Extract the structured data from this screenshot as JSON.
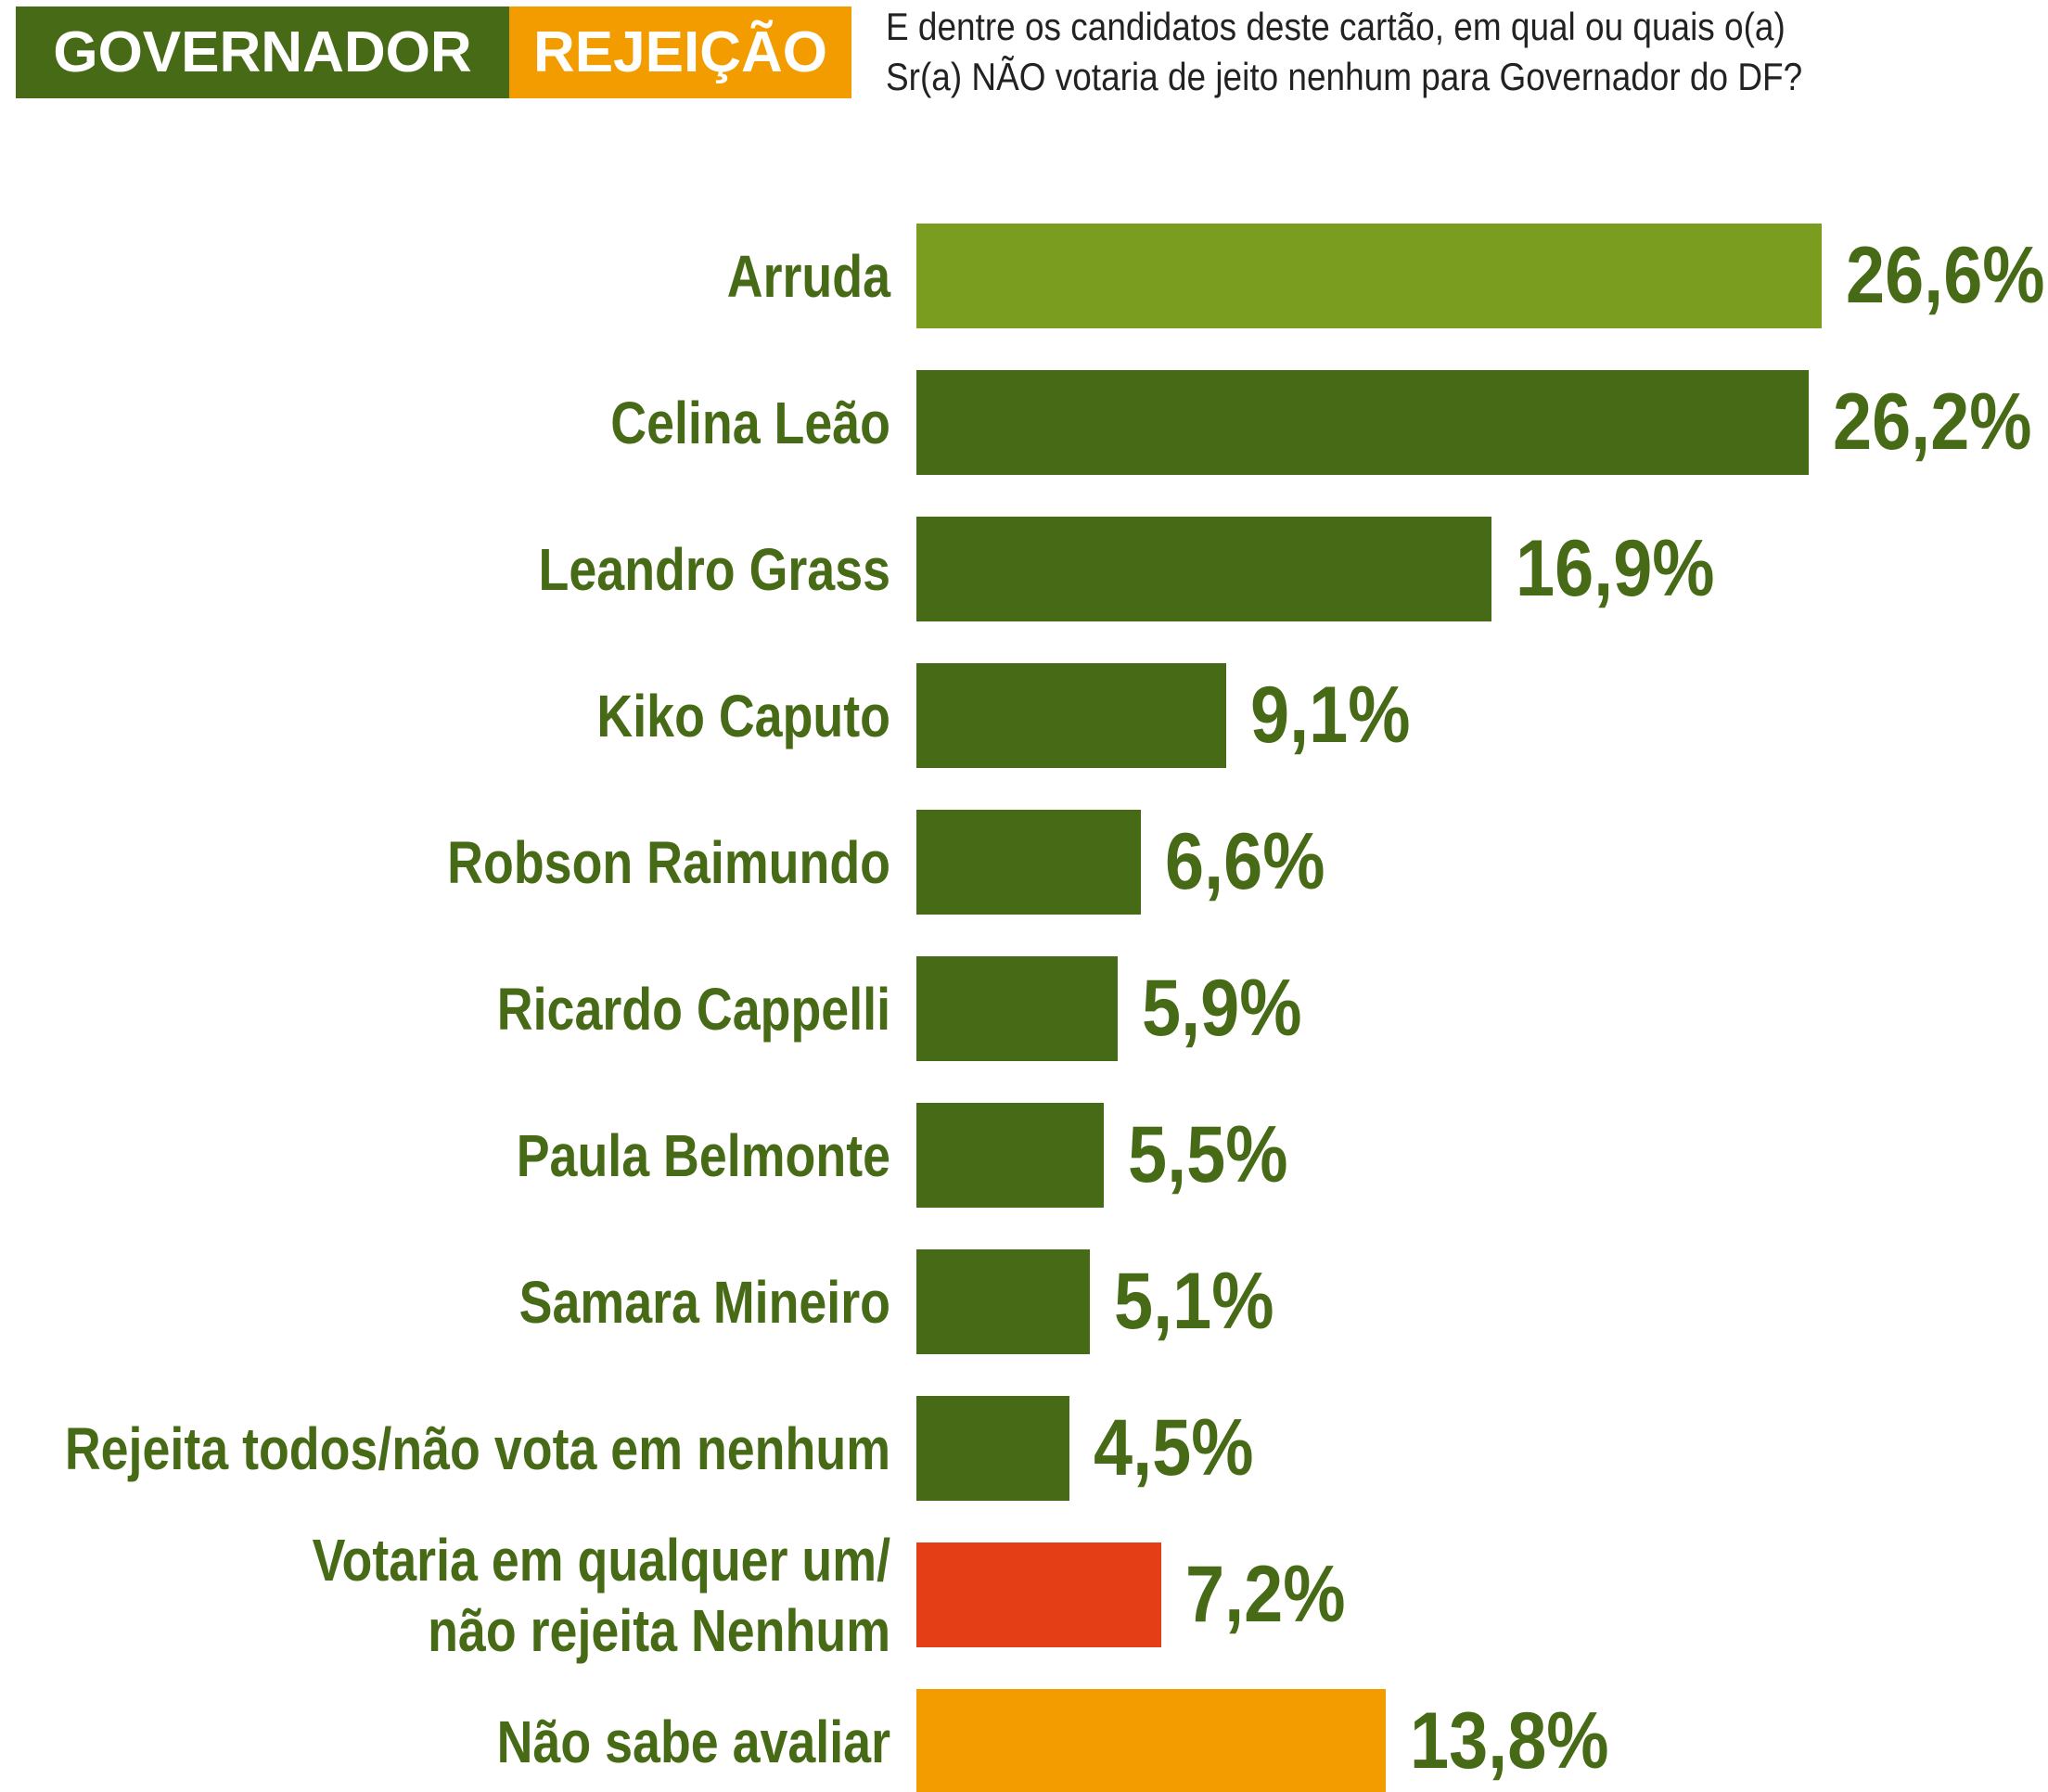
{
  "header": {
    "tag": "GOVERNADOR",
    "topic": "REJEIÇÃO",
    "question": "E dentre os candidatos deste cartão, em qual ou quais o(a)\nSr(a) NÃO votaria de jeito nenhum para Governador do DF?"
  },
  "chart_data": {
    "type": "bar",
    "orientation": "horizontal",
    "categories": [
      "Arruda",
      "Celina Leão",
      "Leandro Grass",
      "Kiko Caputo",
      "Robson Raimundo",
      "Ricardo Cappelli",
      "Paula Belmonte",
      "Samara Mineiro",
      "Rejeita todos/não vota em nenhum",
      "Votaria em qualquer um/\nnão rejeita Nenhum",
      "Não sabe avaliar"
    ],
    "values": [
      26.6,
      26.2,
      16.9,
      9.1,
      6.6,
      5.9,
      5.5,
      5.1,
      4.5,
      7.2,
      13.8
    ],
    "value_labels": [
      "26,6%",
      "26,2%",
      "16,9%",
      "9,1%",
      "6,6%",
      "5,9%",
      "5,5%",
      "5,1%",
      "4,5%",
      "7,2%",
      "13,8%"
    ],
    "colors": [
      "#7a9c1f",
      "#476a17",
      "#476a17",
      "#476a17",
      "#476a17",
      "#476a17",
      "#476a17",
      "#476a17",
      "#476a17",
      "#e43e16",
      "#f39c00"
    ]
  }
}
